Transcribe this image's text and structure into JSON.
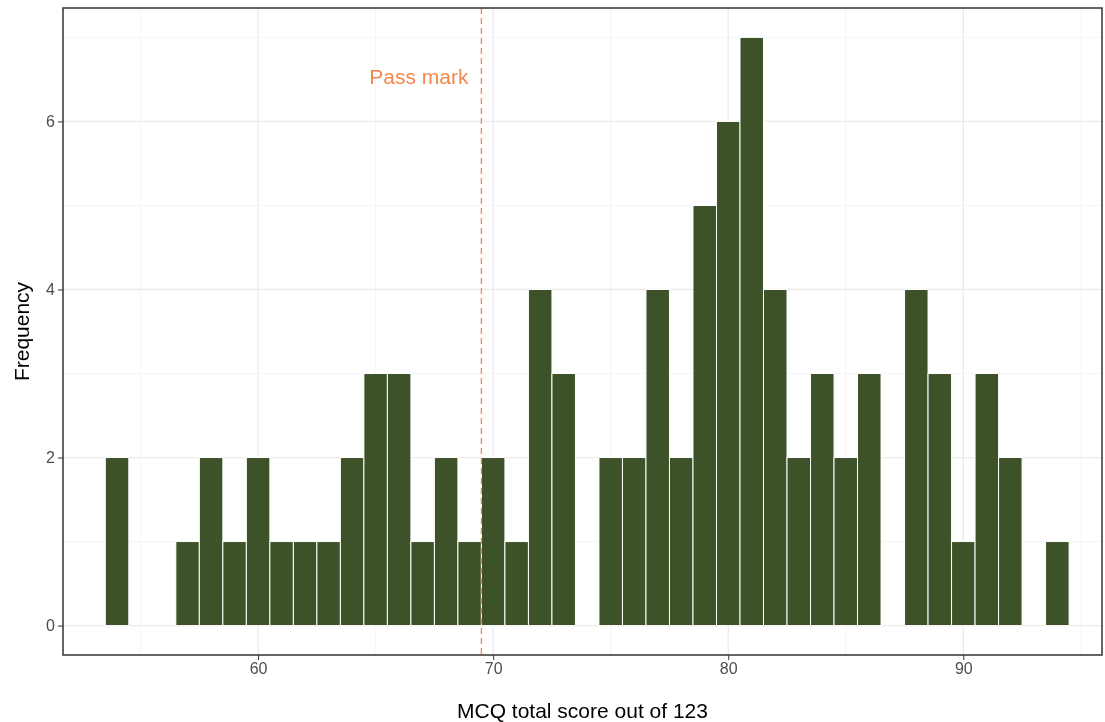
{
  "chart_data": {
    "type": "histogram",
    "xlabel": "MCQ total score out of 123",
    "ylabel": "Frequency",
    "bins": [
      53.5,
      54.5,
      55.5,
      56.5,
      57.5,
      58.5,
      59.5,
      60.5,
      61.5,
      62.5,
      63.5,
      64.5,
      65.5,
      66.5,
      67.5,
      68.5,
      69.5,
      70.5,
      71.5,
      72.5,
      73.5,
      74.5,
      75.5,
      76.5,
      77.5,
      78.5,
      79.5,
      80.5,
      81.5,
      82.5,
      83.5,
      84.5,
      85.5,
      86.5,
      87.5,
      88.5,
      89.5,
      90.5,
      91.5,
      92.5,
      93.5,
      94.5
    ],
    "values": [
      2,
      0,
      0,
      1,
      2,
      1,
      2,
      1,
      1,
      1,
      2,
      3,
      3,
      1,
      2,
      1,
      2,
      1,
      4,
      3,
      0,
      2,
      2,
      4,
      2,
      5,
      6,
      7,
      4,
      2,
      3,
      2,
      3,
      0,
      4,
      3,
      1,
      3,
      2,
      0,
      1
    ],
    "color": "#3d5229",
    "xlim": [
      51.7,
      95.9
    ],
    "xticks": [
      60,
      70,
      80,
      90
    ],
    "ylim": [
      -0.35,
      7.35
    ],
    "yticks": [
      0,
      2,
      4,
      6
    ],
    "grid": true,
    "ref_lines": [
      {
        "axis": "x",
        "value": 69.5,
        "label": "Pass mark",
        "color": "#f4874b",
        "line_style": "dashed"
      }
    ]
  }
}
